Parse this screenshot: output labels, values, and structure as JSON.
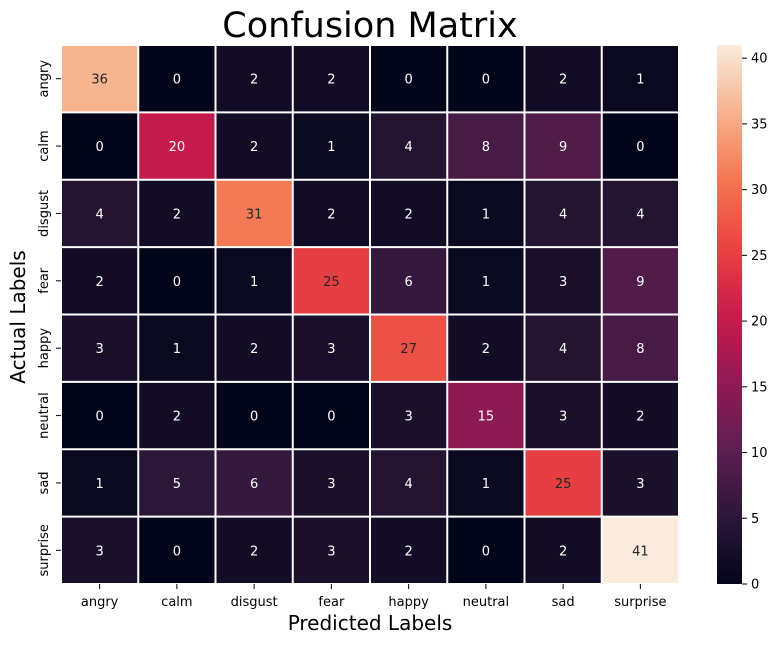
{
  "chart_data": {
    "type": "heatmap",
    "title": "Confusion Matrix",
    "xlabel": "Predicted Labels",
    "ylabel": "Actual Labels",
    "x_categories": [
      "angry",
      "calm",
      "disgust",
      "fear",
      "happy",
      "neutral",
      "sad",
      "surprise"
    ],
    "y_categories": [
      "angry",
      "calm",
      "disgust",
      "fear",
      "happy",
      "neutral",
      "sad",
      "surprise"
    ],
    "values": [
      [
        36,
        0,
        2,
        2,
        0,
        0,
        2,
        1
      ],
      [
        0,
        20,
        2,
        1,
        4,
        8,
        9,
        0
      ],
      [
        4,
        2,
        31,
        2,
        2,
        1,
        4,
        4
      ],
      [
        2,
        0,
        1,
        25,
        6,
        1,
        3,
        9
      ],
      [
        3,
        1,
        2,
        3,
        27,
        2,
        4,
        8
      ],
      [
        0,
        2,
        0,
        0,
        3,
        15,
        3,
        2
      ],
      [
        1,
        5,
        6,
        3,
        4,
        1,
        25,
        3
      ],
      [
        3,
        0,
        2,
        3,
        2,
        0,
        2,
        41
      ]
    ],
    "colorbar": {
      "min": 0,
      "max": 41,
      "ticks": [
        0,
        5,
        10,
        15,
        20,
        25,
        30,
        35,
        40
      ],
      "colormap": "rocket"
    },
    "annotations": true,
    "grid": false
  }
}
